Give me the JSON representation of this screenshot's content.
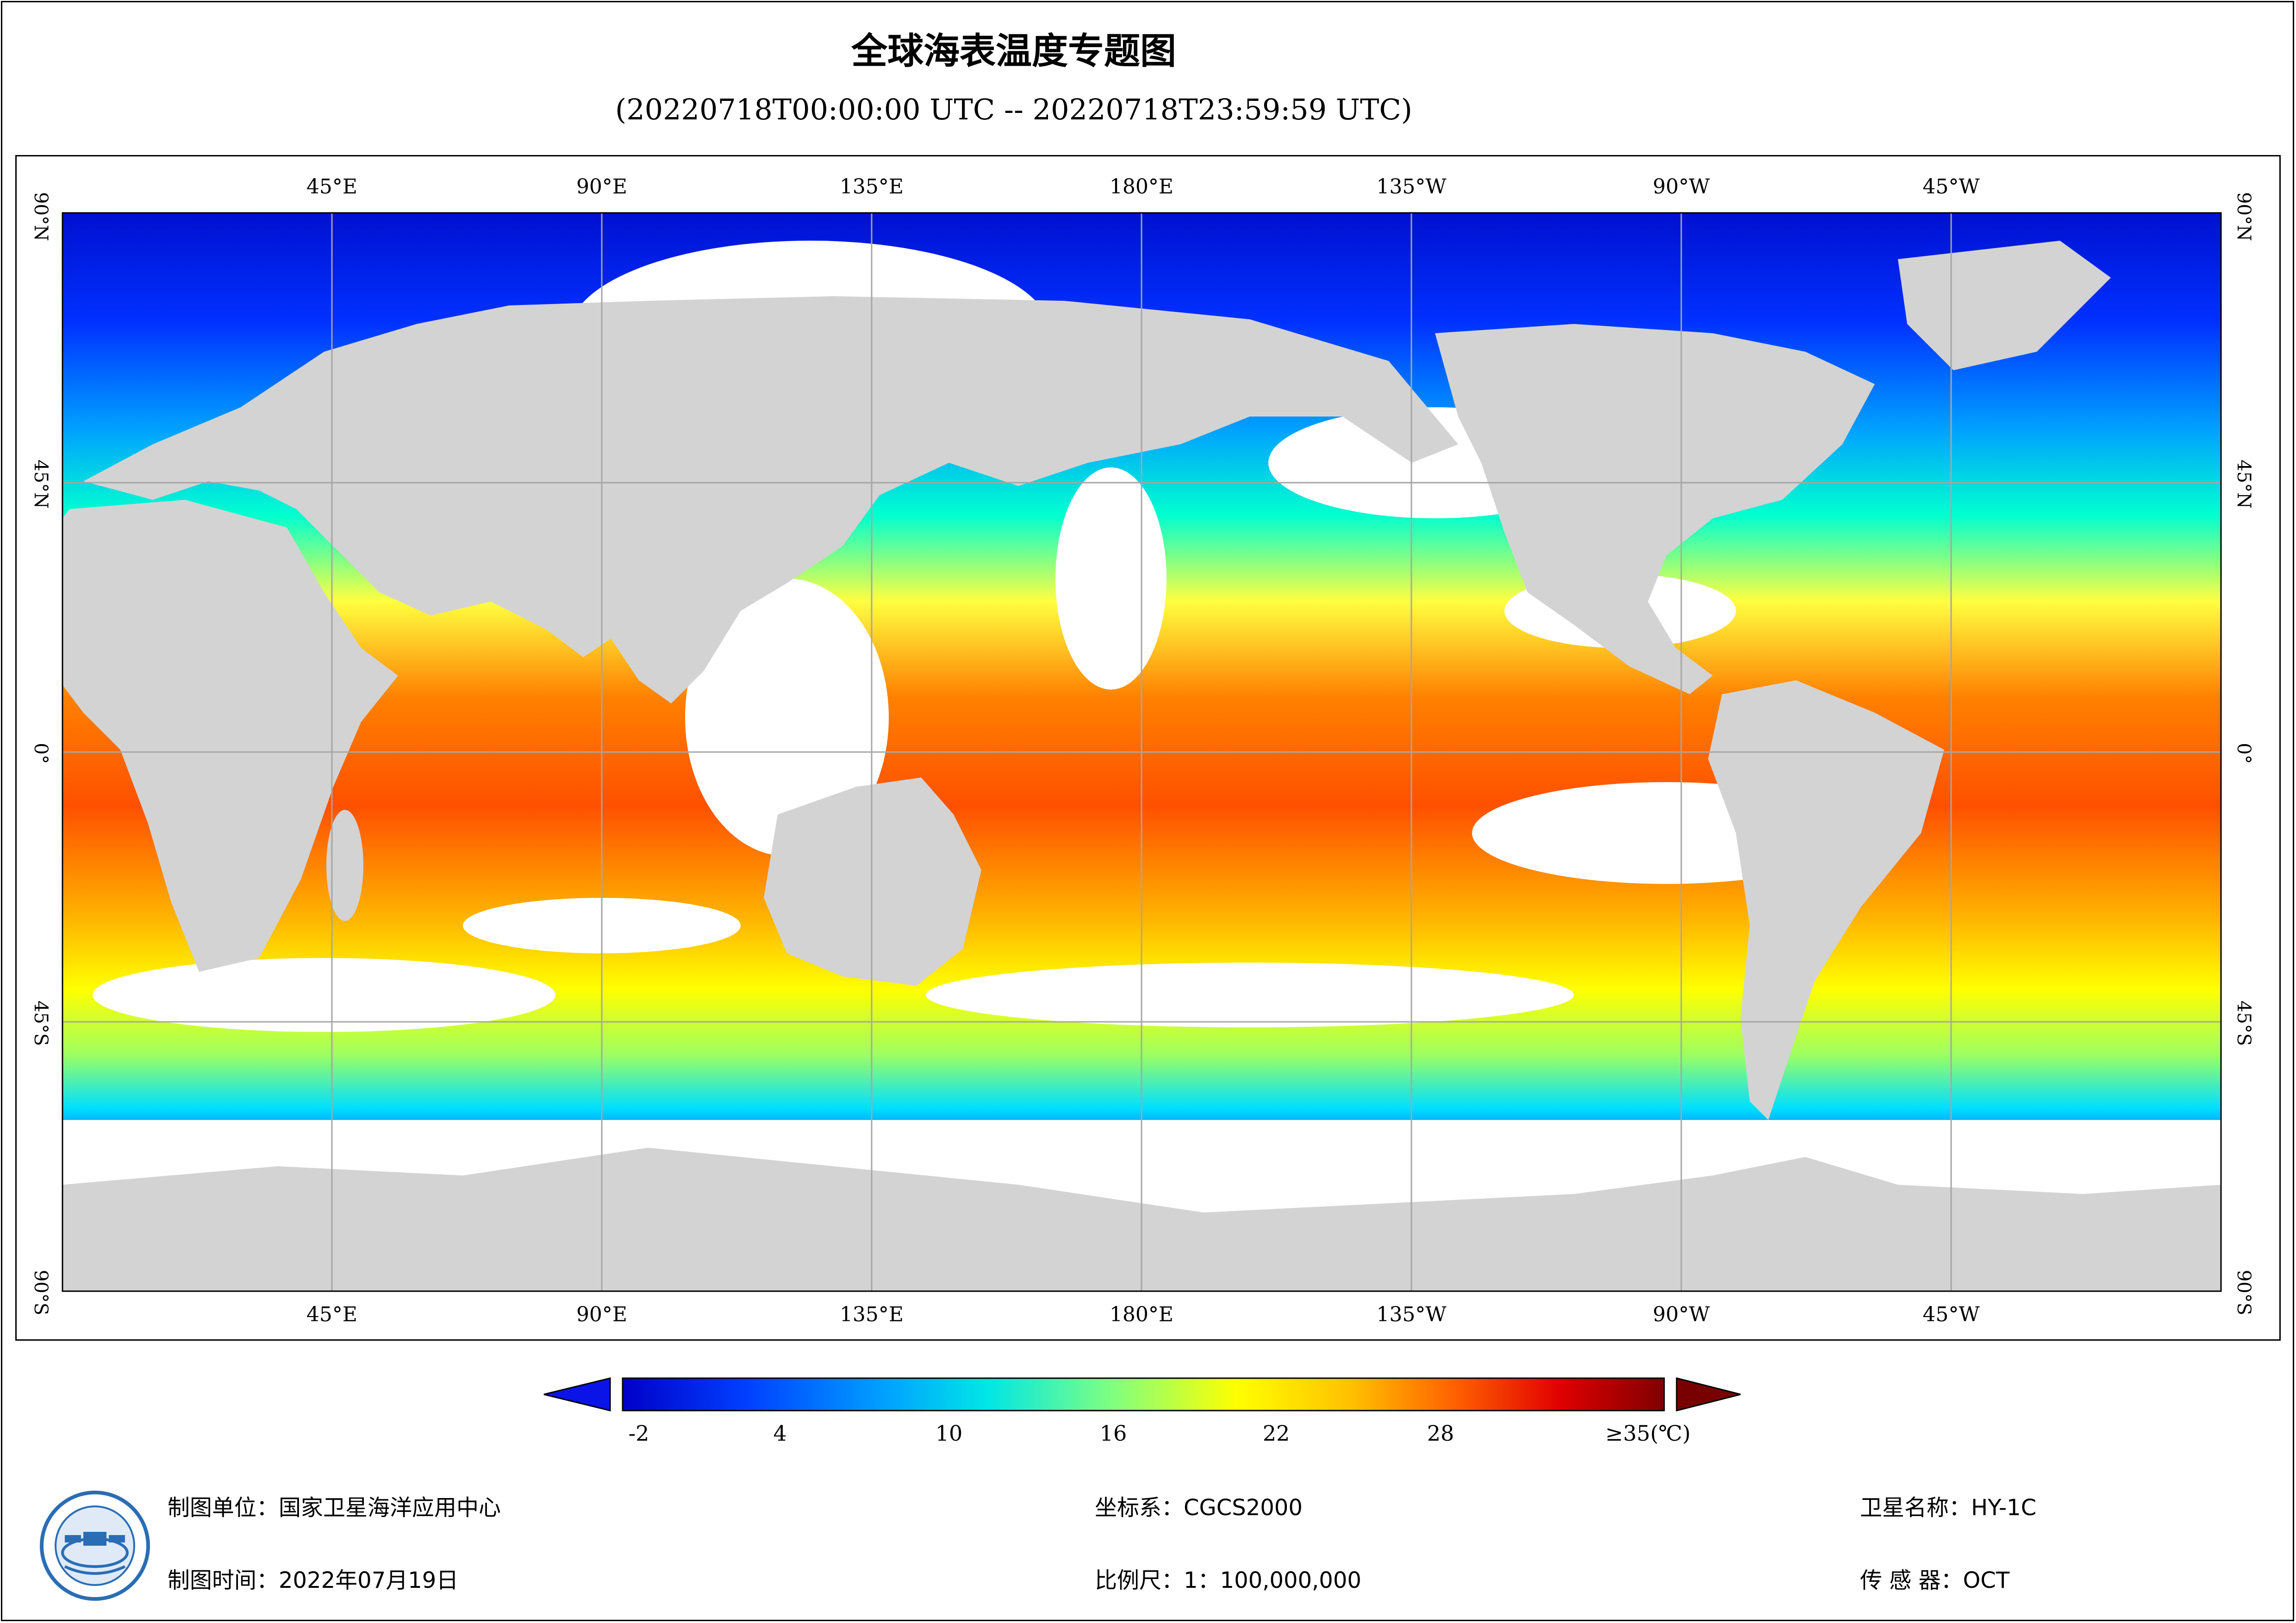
{
  "title": "全球海表温度专题图",
  "subtitle": "(20220718T00:00:00 UTC -- 20220718T23:59:59 UTC)",
  "map": {
    "top_lon_labels": [
      "45°E",
      "90°E",
      "135°E",
      "180°E",
      "135°W",
      "90°W",
      "45°W"
    ],
    "bottom_lon_labels": [
      "45°E",
      "90°E",
      "135°E",
      "180°E",
      "135°W",
      "90°W",
      "45°W"
    ],
    "lat_labels": [
      "90°N",
      "45°N",
      "0°",
      "45°S",
      "90°S"
    ],
    "colors": {
      "land": "#d3d3d3",
      "ocean_cloud": "#ffffff",
      "grid": "#a6a6a6"
    }
  },
  "legend": {
    "ticks": [
      "-2",
      "4",
      "10",
      "16",
      "22",
      "28",
      "≥35(℃)"
    ],
    "colors": {
      "under": "#0a14e6",
      "over": "#780000",
      "stops": [
        "#0000c8",
        "#0040ff",
        "#00a0ff",
        "#00e6e6",
        "#80ff80",
        "#ffff00",
        "#ffc000",
        "#ff6000",
        "#e00000",
        "#800000"
      ]
    }
  },
  "footer": {
    "unit": "制图单位：国家卫星海洋应用中心",
    "time": "制图时间：2022年07月19日",
    "crs": "坐标系：CGCS2000",
    "scale": "比例尺：1：100,000,000",
    "satellite": "卫星名称：HY-1C",
    "sensor": "传 感 器：OCT"
  }
}
